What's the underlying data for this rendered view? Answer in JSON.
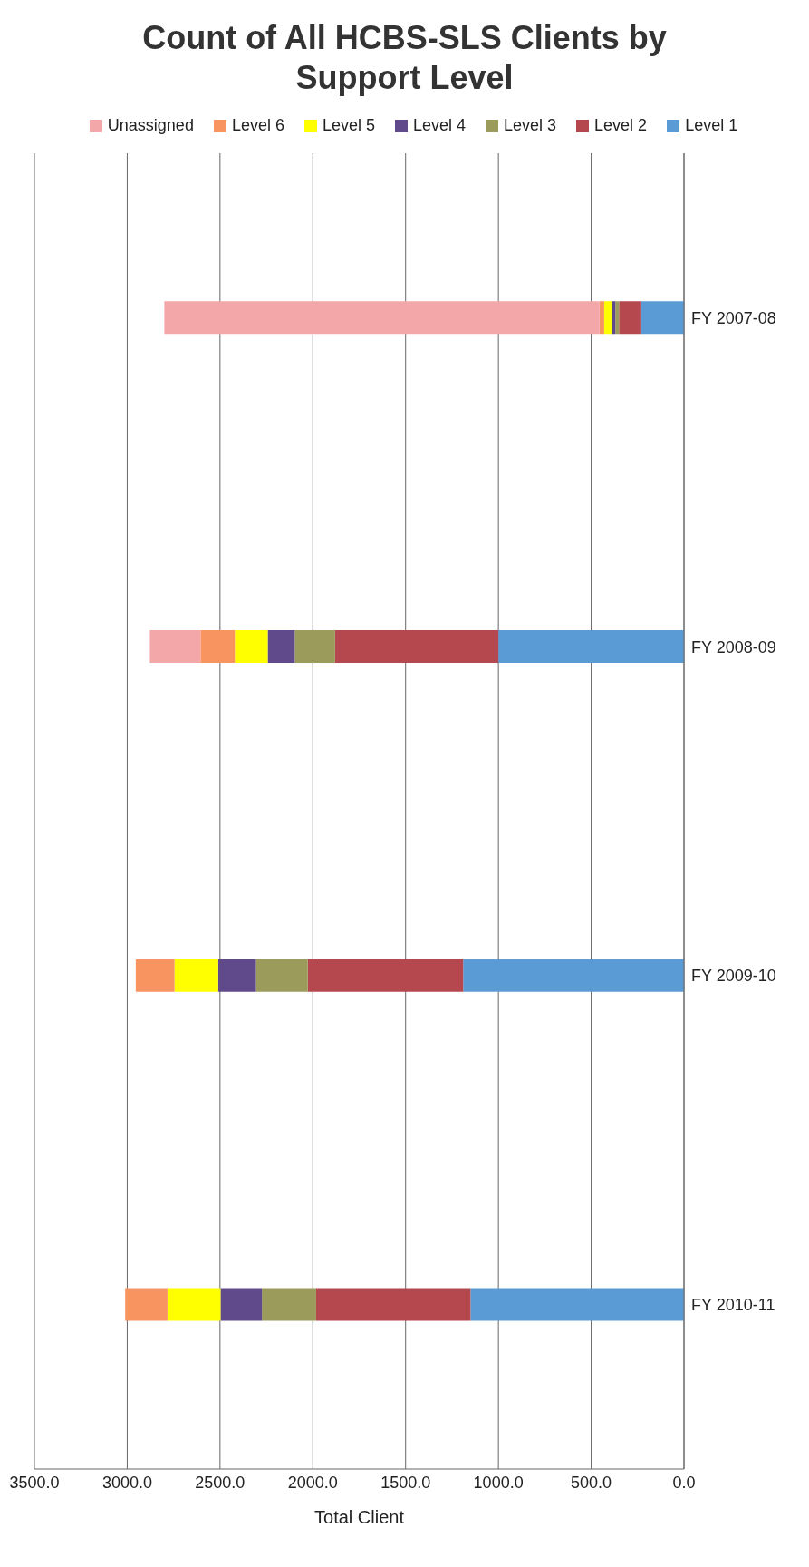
{
  "chart_data": {
    "type": "bar",
    "orientation": "horizontal",
    "title": "Count of All HCBS-SLS Clients by Support Level",
    "xlabel": "Total Client",
    "categories": [
      "FY 2007-08",
      "FY 2008-09",
      "FY 2009-10",
      "FY 2010-11"
    ],
    "stacked": true,
    "series": [
      {
        "name": "Level 1",
        "color": "#5b9bd5",
        "values": [
          230,
          1000,
          1190,
          1150
        ]
      },
      {
        "name": "Level 2",
        "color": "#b5474f",
        "values": [
          120,
          880,
          837,
          832
        ]
      },
      {
        "name": "Level 3",
        "color": "#9b9b5c",
        "values": [
          20,
          217,
          279,
          292
        ]
      },
      {
        "name": "Level 4",
        "color": "#604a8b",
        "values": [
          20,
          146,
          204,
          223
        ]
      },
      {
        "name": "Level 5",
        "color": "#ffff00",
        "values": [
          40,
          177,
          235,
          286
        ]
      },
      {
        "name": "Level 6",
        "color": "#f79460",
        "values": [
          25,
          185,
          209,
          228
        ]
      },
      {
        "name": "Unassigned",
        "color": "#f4a7a9",
        "values": [
          2345,
          273,
          null,
          null
        ]
      }
    ],
    "xlim": [
      3500,
      0
    ],
    "xticks": [
      {
        "value": 0,
        "label": "0.0"
      },
      {
        "value": 500,
        "label": "500.0"
      },
      {
        "value": 1000,
        "label": "1000.0"
      },
      {
        "value": 1500,
        "label": "1500.0"
      },
      {
        "value": 2000,
        "label": "2000.0"
      },
      {
        "value": 2500,
        "label": "2500.0"
      },
      {
        "value": 3000,
        "label": "3000.0"
      },
      {
        "value": 3500,
        "label": "3500.0"
      }
    ],
    "grid": "x",
    "legend": "top"
  }
}
